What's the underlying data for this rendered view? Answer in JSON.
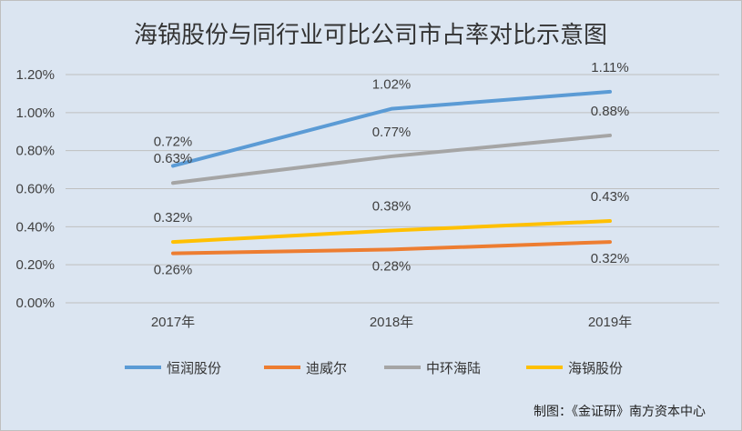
{
  "chart_data": {
    "type": "line",
    "title": "海锅股份与同行业可比公司市占率对比示意图",
    "categories": [
      "2017年",
      "2018年",
      "2019年"
    ],
    "ylim": [
      0,
      1.2
    ],
    "yticks": [
      "0.00%",
      "0.20%",
      "0.40%",
      "0.60%",
      "0.80%",
      "1.00%",
      "1.20%"
    ],
    "grid": true,
    "legend_position": "bottom",
    "series": [
      {
        "name": "恒润股份",
        "color": "#5b9bd5",
        "values": [
          0.72,
          1.02,
          1.11
        ],
        "labels": [
          "0.72%",
          "1.02%",
          "1.11%"
        ]
      },
      {
        "name": "迪威尔",
        "color": "#ed7d31",
        "values": [
          0.26,
          0.28,
          0.32
        ],
        "labels": [
          "0.26%",
          "0.28%",
          "0.32%"
        ]
      },
      {
        "name": "中环海陆",
        "color": "#a5a5a5",
        "values": [
          0.63,
          0.77,
          0.88
        ],
        "labels": [
          "0.63%",
          "0.77%",
          "0.88%"
        ]
      },
      {
        "name": "海锅股份",
        "color": "#ffc000",
        "values": [
          0.32,
          0.38,
          0.43
        ],
        "labels": [
          "0.32%",
          "0.38%",
          "0.43%"
        ]
      }
    ],
    "credit": "制图：《金证研》南方资本中心"
  }
}
